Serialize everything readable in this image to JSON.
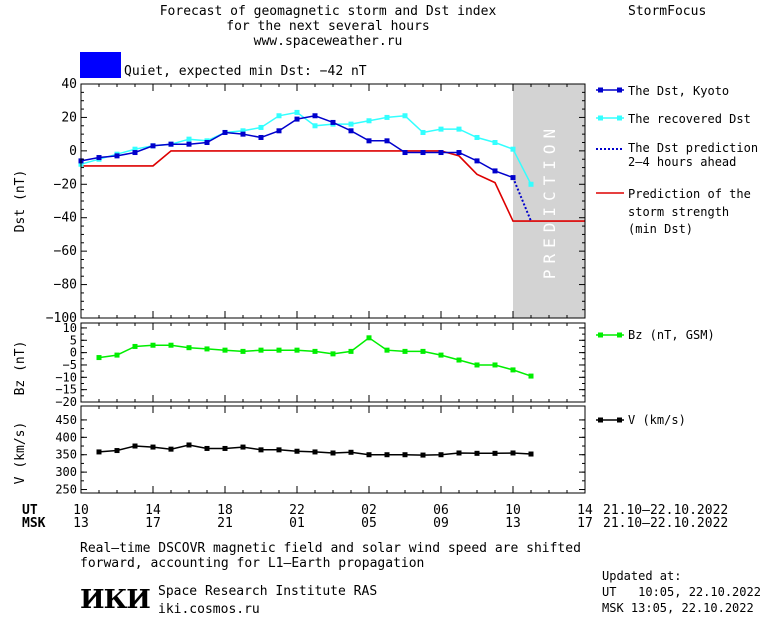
{
  "header": {
    "title_lines": [
      "Forecast of geomagnetic storm and Dst index",
      "for the next several hours",
      "www.spaceweather.ru"
    ],
    "brand": "StormFocus"
  },
  "status": {
    "text": "Quiet, expected min Dst: −42 nT",
    "color": "#0000ff"
  },
  "colors": {
    "dst_kyoto": "#0000cc",
    "dst_recovered": "#33ffff",
    "dst_prediction": "#0000cc",
    "storm_prediction": "#dd0000",
    "bz": "#00ee00",
    "speed": "#000000",
    "prediction_zone": "#d3d3d3"
  },
  "legend": {
    "dst_kyoto": "The Dst, Kyoto",
    "dst_recovered": "The recovered Dst",
    "dst_prediction": [
      "The Dst prediction",
      "2–4 hours ahead"
    ],
    "storm_prediction": [
      "Prediction of the",
      "storm strength",
      "(min Dst)"
    ],
    "bz": "Bz (nT, GSM)",
    "speed": "V (km/s)"
  },
  "prediction_label": "PREDICTION",
  "time_axis": {
    "ut_label": "UT",
    "msk_label": "MSK",
    "ut_ticks": [
      "10",
      "14",
      "18",
      "22",
      "02",
      "06",
      "10",
      "14"
    ],
    "msk_ticks": [
      "13",
      "17",
      "21",
      "01",
      "05",
      "09",
      "13",
      "17"
    ],
    "ut_range": "21.10–22.10.2022",
    "msk_range": "21.10–22.10.2022"
  },
  "footer": {
    "note_lines": [
      "Real–time DSCOVR magnetic field and solar wind speed are shifted",
      "forward, accounting for L1–Earth propagation"
    ],
    "logo": "ИКИ",
    "institute": "Space Research Institute RAS",
    "site": "iki.cosmos.ru",
    "updated_label": "Updated at:",
    "updated_ut": "UT   10:05, 22.10.2022",
    "updated_msk": "MSK 13:05, 22.10.2022"
  },
  "chart_data": [
    {
      "type": "line",
      "ylabel": "Dst (nT)",
      "ylim": [
        -100,
        40
      ],
      "yticks": [
        40,
        20,
        0,
        -20,
        -40,
        -60,
        -80,
        -100
      ],
      "x_unit": "hours since 10 UT, 21.10.2022",
      "xlim": [
        0,
        28
      ],
      "prediction_zone": [
        24,
        28
      ],
      "series": [
        {
          "name": "The Dst, Kyoto",
          "x": [
            0,
            1,
            2,
            3,
            4,
            5,
            6,
            7,
            8,
            9,
            10,
            11,
            12,
            13,
            14,
            15,
            16,
            17,
            18,
            19,
            20,
            21,
            22,
            23,
            24
          ],
          "values": [
            -6,
            -4,
            -3,
            -1,
            3,
            4,
            4,
            5,
            11,
            10,
            8,
            12,
            19,
            21,
            17,
            12,
            6,
            6,
            -1,
            -1,
            -1,
            -1,
            -6,
            -12,
            -16
          ]
        },
        {
          "name": "The recovered Dst",
          "x": [
            0,
            1,
            2,
            3,
            4,
            5,
            6,
            7,
            8,
            9,
            10,
            11,
            12,
            13,
            14,
            15,
            16,
            17,
            18,
            19,
            20,
            21,
            22,
            23,
            24,
            25
          ],
          "values": [
            -8,
            -5,
            -2,
            1,
            3,
            4,
            7,
            6,
            11,
            12,
            14,
            21,
            23,
            15,
            16,
            16,
            18,
            20,
            21,
            11,
            13,
            13,
            8,
            5,
            1,
            -20
          ]
        },
        {
          "name": "The Dst prediction 2–4 hours ahead",
          "x": [
            24,
            25
          ],
          "values": [
            -16,
            -42
          ]
        },
        {
          "name": "Prediction of the storm strength (min Dst)",
          "x": [
            0,
            4,
            5,
            11,
            16,
            20,
            21,
            22,
            23,
            24,
            28
          ],
          "values": [
            -9,
            -9,
            0,
            0,
            0,
            0,
            -3,
            -14,
            -19,
            -42,
            -42
          ]
        }
      ]
    },
    {
      "type": "line",
      "ylabel": "Bz (nT)",
      "ylim": [
        -20,
        12
      ],
      "yticks": [
        10,
        5,
        0,
        -5,
        -10,
        -15,
        -20
      ],
      "series": [
        {
          "name": "Bz (nT, GSM)",
          "x": [
            1,
            2,
            3,
            4,
            5,
            6,
            7,
            8,
            9,
            10,
            11,
            12,
            13,
            14,
            15,
            16,
            17,
            18,
            19,
            20,
            21,
            22,
            23,
            24,
            25
          ],
          "values": [
            -2,
            -1,
            2.5,
            3,
            3,
            2,
            1.5,
            1,
            0.5,
            1,
            1,
            1,
            0.5,
            -0.5,
            0.5,
            6,
            1,
            0.5,
            0.5,
            -1,
            -3,
            -5,
            -5,
            -7,
            -9.5
          ]
        }
      ]
    },
    {
      "type": "line",
      "ylabel": "V (km/s)",
      "ylim": [
        240,
        490
      ],
      "yticks": [
        450,
        400,
        350,
        300,
        250
      ],
      "series": [
        {
          "name": "V (km/s)",
          "x": [
            1,
            2,
            3,
            4,
            5,
            6,
            7,
            8,
            9,
            10,
            11,
            12,
            13,
            14,
            15,
            16,
            17,
            18,
            19,
            20,
            21,
            22,
            23,
            24,
            25
          ],
          "values": [
            358,
            362,
            375,
            372,
            366,
            378,
            368,
            368,
            372,
            364,
            364,
            360,
            358,
            355,
            357,
            350,
            350,
            350,
            349,
            350,
            355,
            354,
            354,
            355,
            352
          ]
        }
      ]
    }
  ]
}
